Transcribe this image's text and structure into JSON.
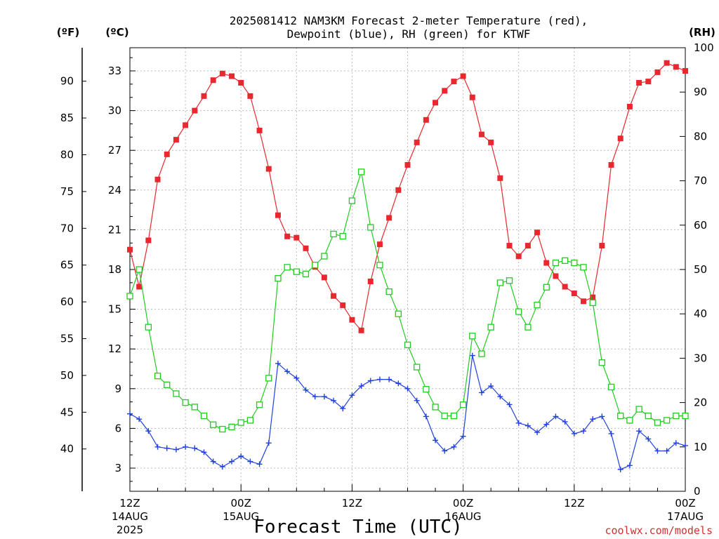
{
  "chart_data": {
    "type": "line",
    "title_line1": "2025081412 NAM3KM Forecast 2-meter Temperature (red),",
    "title_line2": "Dewpoint (blue), RH (green) for KTWF",
    "xlabel": "Forecast Time (UTC)",
    "watermark": "coolwx.com/models",
    "unit_f": "(ºF)",
    "unit_c": "(ºC)",
    "unit_rh": "(RH)",
    "x_hours_range": [
      0,
      60
    ],
    "x_ticks": [
      {
        "h": 0,
        "l1": "12Z",
        "l2": "14AUG",
        "l3": "2025"
      },
      {
        "h": 12,
        "l1": "00Z",
        "l2": "15AUG",
        "l3": ""
      },
      {
        "h": 24,
        "l1": "12Z",
        "l2": "",
        "l3": ""
      },
      {
        "h": 36,
        "l1": "00Z",
        "l2": "16AUG",
        "l3": ""
      },
      {
        "h": 48,
        "l1": "12Z",
        "l2": "",
        "l3": ""
      },
      {
        "h": 60,
        "l1": "00Z",
        "l2": "17AUG",
        "l3": ""
      }
    ],
    "ylim_c": [
      1.25,
      34.75
    ],
    "yticks_c": [
      "3",
      "6",
      "9",
      "12",
      "15",
      "18",
      "21",
      "24",
      "27",
      "30",
      "33"
    ],
    "yticks_f": [
      "40",
      "45",
      "50",
      "55",
      "60",
      "65",
      "70",
      "75",
      "80",
      "85",
      "90"
    ],
    "ylim_rh": [
      0,
      100
    ],
    "yticks_rh": [
      "0",
      "10",
      "20",
      "30",
      "40",
      "50",
      "60",
      "70",
      "80",
      "90",
      "100"
    ],
    "series": [
      {
        "key": "temp",
        "color": "#e8282e",
        "marker": "filled-square",
        "x": [
          0,
          1,
          2,
          3,
          4,
          5,
          6,
          7,
          8,
          9,
          10,
          11,
          12,
          13,
          14,
          15,
          16,
          17,
          18,
          19,
          20,
          21,
          22,
          23,
          24,
          25,
          26,
          27,
          28,
          29,
          30,
          31,
          32,
          33,
          34,
          35,
          36,
          37,
          38,
          39,
          40,
          41,
          42,
          43,
          44,
          45,
          46,
          47,
          48,
          49,
          50,
          51,
          52,
          53,
          54,
          55,
          56,
          57,
          58,
          59,
          60
        ],
        "values": [
          19.5,
          16.7,
          20.2,
          24.8,
          26.7,
          27.8,
          28.9,
          30.0,
          31.1,
          32.3,
          32.8,
          32.6,
          32.1,
          31.1,
          28.5,
          25.6,
          22.1,
          20.5,
          20.4,
          19.6,
          18.2,
          17.4,
          16.0,
          15.3,
          14.2,
          13.4,
          17.1,
          19.9,
          21.9,
          24.0,
          25.9,
          27.6,
          29.3,
          30.6,
          31.5,
          32.2,
          32.6,
          31.0,
          28.2,
          27.6,
          24.9,
          19.8,
          19.0,
          19.8,
          20.8,
          18.5,
          17.5,
          16.7,
          16.2,
          15.6,
          15.9,
          19.8,
          25.9,
          27.9,
          30.3,
          32.1,
          32.2,
          32.9,
          33.6,
          33.3,
          33.0
        ]
      },
      {
        "key": "dewpoint",
        "color": "#2040e0",
        "marker": "plus",
        "x": [
          0,
          1,
          2,
          3,
          4,
          5,
          6,
          7,
          8,
          9,
          10,
          11,
          12,
          13,
          14,
          15,
          16,
          17,
          18,
          19,
          20,
          21,
          22,
          23,
          24,
          25,
          26,
          27,
          28,
          29,
          30,
          31,
          32,
          33,
          34,
          35,
          36,
          37,
          38,
          39,
          40,
          41,
          42,
          43,
          44,
          45,
          46,
          47,
          48,
          49,
          50,
          51,
          52,
          53,
          54,
          55,
          56,
          57,
          58,
          59,
          60
        ],
        "values": [
          7.1,
          6.7,
          5.8,
          4.6,
          4.5,
          4.4,
          4.6,
          4.5,
          4.2,
          3.5,
          3.1,
          3.5,
          3.9,
          3.5,
          3.3,
          4.9,
          10.9,
          10.3,
          9.8,
          8.9,
          8.4,
          8.4,
          8.1,
          7.5,
          8.5,
          9.2,
          9.6,
          9.7,
          9.7,
          9.4,
          9.0,
          8.1,
          6.9,
          5.1,
          4.3,
          4.6,
          5.4,
          11.5,
          8.7,
          9.2,
          8.4,
          7.8,
          6.4,
          6.2,
          5.7,
          6.3,
          6.9,
          6.5,
          5.6,
          5.8,
          6.7,
          6.9,
          5.6,
          2.9,
          3.2,
          5.8,
          5.2,
          4.3,
          4.3,
          4.9,
          4.7
        ]
      },
      {
        "key": "rh",
        "color": "#20cc20",
        "marker": "open-square",
        "x": [
          0,
          1,
          2,
          3,
          4,
          5,
          6,
          7,
          8,
          9,
          10,
          11,
          12,
          13,
          14,
          15,
          16,
          17,
          18,
          19,
          20,
          21,
          22,
          23,
          24,
          25,
          26,
          27,
          28,
          29,
          30,
          31,
          32,
          33,
          34,
          35,
          36,
          37,
          38,
          39,
          40,
          41,
          42,
          43,
          44,
          45,
          46,
          47,
          48,
          49,
          50,
          51,
          52,
          53,
          54,
          55,
          56,
          57,
          58,
          59,
          60
        ],
        "values": [
          44,
          50,
          37,
          26,
          24,
          22,
          20,
          19,
          17,
          15,
          14,
          14.5,
          15.5,
          16,
          19.5,
          25.5,
          48,
          50.5,
          49.5,
          49,
          51,
          53,
          58,
          57.5,
          65.5,
          72,
          59.5,
          51,
          45,
          40,
          33,
          28,
          23,
          19,
          17,
          17,
          19.5,
          35,
          31,
          37,
          47,
          47.5,
          40.5,
          37,
          42,
          46,
          51.5,
          52,
          51.5,
          50.5,
          42.5,
          29,
          23.5,
          17,
          16,
          18.5,
          17,
          15.5,
          16,
          17,
          17
        ]
      }
    ]
  }
}
